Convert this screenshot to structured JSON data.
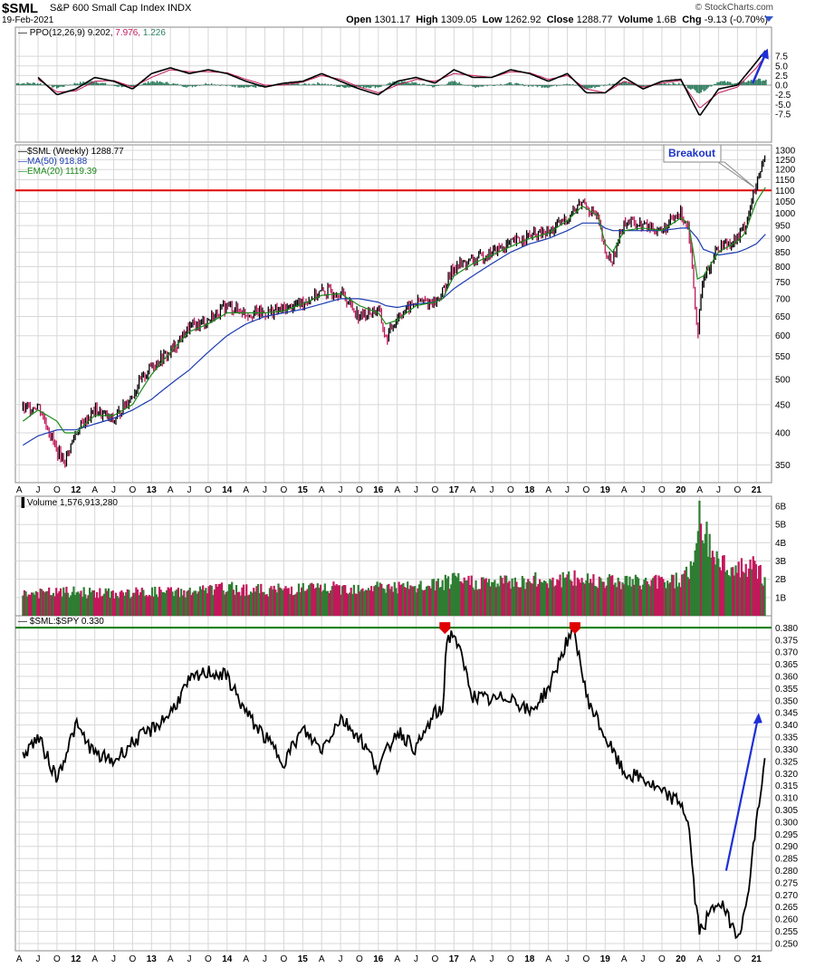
{
  "header": {
    "symbol": "$SML",
    "index_name": "S&P 600 Small Cap Index",
    "exchange": "INDX",
    "date": "19-Feb-2021",
    "watermark": "© StockCharts.com",
    "open_label": "Open",
    "open": "1301.17",
    "high_label": "High",
    "high": "1309.05",
    "low_label": "Low",
    "low": "1262.92",
    "close_label": "Close",
    "close": "1288.77",
    "volume_label": "Volume",
    "volume": "1.6B",
    "chg_label": "Chg",
    "chg": "-9.13 (-0.70%)"
  },
  "colors": {
    "up": "#2e7d32",
    "down": "#c2185b",
    "price": "#000000",
    "ma50": "#1a3bb0",
    "ema20": "#1b8a1b",
    "ppo_signal": "#c2185b",
    "hist": "#2e7d5e",
    "breakout_line": "#e00000",
    "ratio_line": "#007a00",
    "arrow": "#1f2fd6",
    "peak_marker": "#e00000",
    "grid": "#d8d8d8"
  },
  "x_axis": [
    "A",
    "J",
    "O",
    "12",
    "A",
    "J",
    "O",
    "13",
    "A",
    "J",
    "O",
    "14",
    "A",
    "J",
    "O",
    "15",
    "A",
    "J",
    "O",
    "16",
    "A",
    "J",
    "O",
    "17",
    "A",
    "J",
    "O",
    "18",
    "A",
    "J",
    "O",
    "19",
    "A",
    "J",
    "O",
    "20",
    "A",
    "J",
    "O",
    "21"
  ],
  "chart_data": [
    {
      "id": "ppo",
      "type": "line",
      "legend": [
        {
          "label": "PPO(12,26,9)",
          "value": "9.202",
          "color": "#000000"
        },
        {
          "label": "",
          "value": "7.976",
          "color": "#c2185b"
        },
        {
          "label": "",
          "value": "1.226",
          "color": "#2e7d5e"
        }
      ],
      "ylim": [
        -10,
        10
      ],
      "y_ticks": [
        "7.5",
        "5.0",
        "2.5",
        "0.0",
        "-2.5",
        "-5.0",
        "-7.5"
      ],
      "x": [
        2011.5,
        2011.75,
        2012.0,
        2012.25,
        2012.5,
        2012.75,
        2013.0,
        2013.25,
        2013.5,
        2013.75,
        2014.0,
        2014.25,
        2014.5,
        2014.75,
        2015.0,
        2015.25,
        2015.5,
        2015.75,
        2016.0,
        2016.25,
        2016.5,
        2016.75,
        2017.0,
        2017.25,
        2017.5,
        2017.75,
        2018.0,
        2018.25,
        2018.5,
        2018.75,
        2019.0,
        2019.25,
        2019.5,
        2019.75,
        2020.0,
        2020.25,
        2020.5,
        2020.75,
        2021.0,
        2021.13
      ],
      "series": [
        {
          "values": [
            2.0,
            -2.5,
            -1.0,
            2.0,
            1.0,
            -1.0,
            3.0,
            4.5,
            3.0,
            4.0,
            3.0,
            1.0,
            -0.5,
            0.5,
            1.0,
            3.0,
            1.0,
            -1.0,
            -2.5,
            1.0,
            2.0,
            0.5,
            4.0,
            2.0,
            2.0,
            4.0,
            3.0,
            1.0,
            3.0,
            -2.0,
            -2.0,
            2.0,
            -1.0,
            1.0,
            1.5,
            -8.0,
            -1.0,
            0.0,
            6.0,
            9.202
          ]
        },
        {
          "values": [
            1.5,
            -1.8,
            -1.5,
            1.0,
            1.2,
            -0.5,
            2.0,
            4.0,
            3.5,
            3.5,
            3.2,
            1.5,
            0.0,
            0.0,
            0.8,
            2.5,
            1.5,
            -0.5,
            -2.0,
            0.0,
            1.5,
            1.0,
            3.0,
            2.5,
            2.0,
            3.5,
            3.2,
            1.5,
            2.5,
            -1.0,
            -2.0,
            1.0,
            -0.5,
            0.5,
            1.2,
            -6.0,
            -2.0,
            -0.5,
            4.5,
            7.976
          ]
        },
        {
          "values": [
            0.5,
            -0.7,
            0.5,
            1.0,
            -0.2,
            -0.5,
            1.0,
            0.5,
            -0.5,
            0.5,
            -0.2,
            -0.5,
            -0.5,
            0.5,
            0.2,
            0.5,
            -0.5,
            -0.5,
            -0.5,
            1.0,
            0.5,
            -0.5,
            1.0,
            -0.5,
            0.0,
            0.5,
            -0.2,
            -0.5,
            0.5,
            -1.0,
            0.0,
            1.0,
            -0.5,
            0.5,
            0.3,
            -2.0,
            1.0,
            0.5,
            1.5,
            1.226
          ]
        }
      ]
    },
    {
      "id": "price",
      "type": "line",
      "legend": [
        {
          "label": "$SML (Weekly)",
          "value": "1288.77",
          "color": "#000000"
        },
        {
          "label": "MA(50)",
          "value": "918.88",
          "color": "#1a3bb0"
        },
        {
          "label": "EMA(20)",
          "value": "1119.39",
          "color": "#1b8a1b"
        }
      ],
      "y_scale": "log",
      "ylim": [
        325,
        1330
      ],
      "y_ticks": [
        "1300",
        "1250",
        "1200",
        "1150",
        "1100",
        "1050",
        "1000",
        "950",
        "900",
        "850",
        "800",
        "750",
        "700",
        "650",
        "600",
        "550",
        "500",
        "450",
        "400",
        "350"
      ],
      "annotation": "Breakout",
      "breakout_level": 1100,
      "x": [
        2011.3,
        2011.5,
        2011.75,
        2011.85,
        2012.0,
        2012.25,
        2012.5,
        2012.75,
        2013.0,
        2013.25,
        2013.5,
        2013.75,
        2014.0,
        2014.25,
        2014.5,
        2014.75,
        2015.0,
        2015.25,
        2015.5,
        2015.75,
        2016.0,
        2016.1,
        2016.25,
        2016.5,
        2016.75,
        2016.85,
        2017.0,
        2017.25,
        2017.5,
        2017.75,
        2018.0,
        2018.25,
        2018.5,
        2018.7,
        2018.9,
        2019.0,
        2019.1,
        2019.25,
        2019.5,
        2019.75,
        2020.0,
        2020.1,
        2020.22,
        2020.3,
        2020.5,
        2020.75,
        2020.85,
        2021.0,
        2021.13
      ],
      "series": [
        {
          "name": "$SML (Weekly)",
          "values": [
            440,
            450,
            370,
            355,
            400,
            440,
            420,
            470,
            530,
            560,
            620,
            640,
            680,
            660,
            660,
            670,
            690,
            720,
            720,
            650,
            670,
            590,
            650,
            690,
            690,
            720,
            800,
            820,
            850,
            880,
            910,
            920,
            980,
            1050,
            980,
            840,
            820,
            970,
            950,
            930,
            1000,
            950,
            600,
            760,
            870,
            900,
            950,
            1120,
            1288.77
          ]
        },
        {
          "name": "MA(50)",
          "values": [
            380,
            395,
            405,
            405,
            405,
            415,
            425,
            440,
            460,
            490,
            520,
            560,
            600,
            630,
            650,
            660,
            670,
            685,
            700,
            700,
            690,
            680,
            675,
            685,
            690,
            700,
            730,
            770,
            810,
            850,
            880,
            900,
            930,
            960,
            960,
            940,
            930,
            930,
            930,
            930,
            940,
            940,
            900,
            860,
            840,
            850,
            860,
            880,
            918.88
          ]
        },
        {
          "name": "EMA(20)",
          "values": [
            420,
            440,
            420,
            400,
            400,
            430,
            430,
            450,
            510,
            560,
            610,
            630,
            660,
            660,
            660,
            665,
            685,
            710,
            715,
            680,
            660,
            630,
            640,
            680,
            690,
            700,
            770,
            810,
            840,
            870,
            900,
            920,
            970,
            1030,
            990,
            880,
            850,
            930,
            940,
            930,
            980,
            960,
            760,
            770,
            850,
            890,
            920,
            1050,
            1119.39
          ]
        }
      ]
    },
    {
      "id": "volume",
      "type": "bar",
      "label": "Volume",
      "value": "1,576,913,280",
      "ylim": [
        0,
        6300000000
      ],
      "y_ticks": [
        "6B",
        "5B",
        "4B",
        "3B",
        "2B",
        "1B"
      ],
      "x": [
        2011.3,
        2012.0,
        2012.5,
        2013.0,
        2013.5,
        2014.0,
        2014.5,
        2015.0,
        2015.5,
        2016.0,
        2016.5,
        2017.0,
        2017.5,
        2018.0,
        2018.5,
        2019.0,
        2019.5,
        2020.0,
        2020.2,
        2020.25,
        2020.3,
        2020.5,
        2020.75,
        2021.0,
        2021.13
      ],
      "values": [
        1200000000,
        1300000000,
        1200000000,
        1300000000,
        1300000000,
        1500000000,
        1400000000,
        1500000000,
        1500000000,
        1600000000,
        1500000000,
        1900000000,
        1800000000,
        1900000000,
        2000000000,
        2000000000,
        1800000000,
        2000000000,
        3000000000,
        6000000000,
        4500000000,
        3000000000,
        2500000000,
        2700000000,
        1600000000
      ]
    },
    {
      "id": "ratio",
      "type": "line",
      "legend": [
        {
          "label": "$SML:$SPY",
          "value": "0.330",
          "color": "#000000"
        }
      ],
      "ylim": [
        0.247,
        0.385
      ],
      "y_ticks": [
        "0.380",
        "0.375",
        "0.370",
        "0.365",
        "0.360",
        "0.355",
        "0.350",
        "0.345",
        "0.340",
        "0.335",
        "0.330",
        "0.325",
        "0.320",
        "0.315",
        "0.310",
        "0.305",
        "0.300",
        "0.295",
        "0.290",
        "0.285",
        "0.280",
        "0.275",
        "0.270",
        "0.265",
        "0.260",
        "0.255",
        "0.250"
      ],
      "resistance_level": 0.379,
      "x": [
        2011.3,
        2011.5,
        2011.75,
        2012.0,
        2012.25,
        2012.5,
        2012.75,
        2013.0,
        2013.25,
        2013.5,
        2013.75,
        2014.0,
        2014.25,
        2014.5,
        2014.75,
        2015.0,
        2015.25,
        2015.5,
        2015.75,
        2016.0,
        2016.25,
        2016.5,
        2016.75,
        2016.85,
        2016.9,
        2017.0,
        2017.25,
        2017.5,
        2017.75,
        2018.0,
        2018.25,
        2018.5,
        2018.6,
        2018.75,
        2019.0,
        2019.25,
        2019.5,
        2019.75,
        2020.0,
        2020.1,
        2020.2,
        2020.25,
        2020.5,
        2020.6,
        2020.75,
        2020.85,
        2021.0,
        2021.13
      ],
      "values": [
        0.328,
        0.335,
        0.318,
        0.34,
        0.328,
        0.325,
        0.333,
        0.338,
        0.345,
        0.358,
        0.362,
        0.36,
        0.345,
        0.335,
        0.325,
        0.338,
        0.33,
        0.343,
        0.335,
        0.322,
        0.338,
        0.33,
        0.345,
        0.345,
        0.375,
        0.378,
        0.352,
        0.35,
        0.352,
        0.345,
        0.355,
        0.375,
        0.378,
        0.352,
        0.335,
        0.32,
        0.318,
        0.312,
        0.308,
        0.3,
        0.265,
        0.255,
        0.268,
        0.262,
        0.254,
        0.262,
        0.3,
        0.33
      ]
    }
  ]
}
